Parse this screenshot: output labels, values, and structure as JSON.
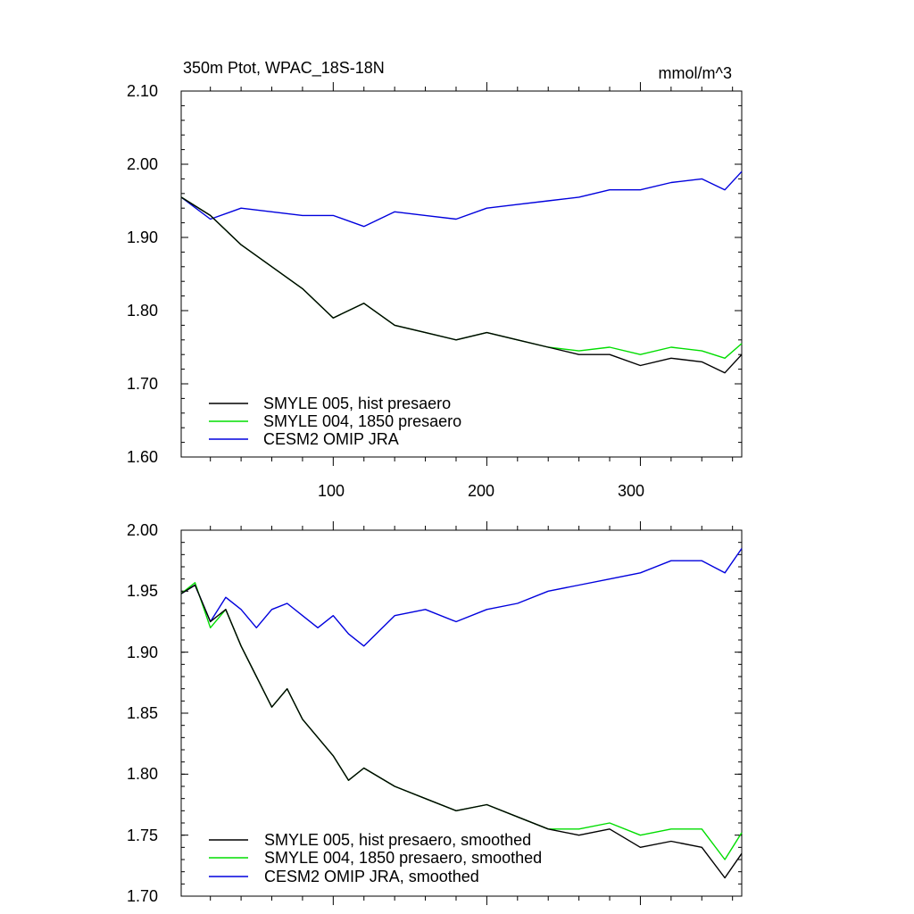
{
  "chart_data": [
    {
      "type": "line",
      "title": "350m Ptot, WPAC_18S-18N",
      "units": "mmol/m^3",
      "xlim": [
        1,
        366
      ],
      "ylim": [
        1.6,
        2.1
      ],
      "x_ticks": [
        100,
        200,
        300
      ],
      "y_ticks": [
        "1.60",
        "1.70",
        "1.80",
        "1.90",
        "2.00",
        "2.10"
      ],
      "legend_position": "bottom-left",
      "series": [
        {
          "name": "SMYLE 005, hist presaero",
          "color": "#000000",
          "x": [
            1,
            20,
            40,
            60,
            80,
            100,
            120,
            140,
            160,
            180,
            200,
            220,
            240,
            260,
            280,
            300,
            320,
            340,
            355,
            366
          ],
          "y": [
            1.955,
            1.93,
            1.89,
            1.86,
            1.83,
            1.79,
            1.81,
            1.78,
            1.77,
            1.76,
            1.77,
            1.76,
            1.75,
            1.74,
            1.74,
            1.725,
            1.735,
            1.73,
            1.715,
            1.74
          ]
        },
        {
          "name": "SMYLE 004, 1850 presaero",
          "color": "#00dd00",
          "x": [
            1,
            20,
            40,
            60,
            80,
            100,
            120,
            140,
            160,
            180,
            200,
            220,
            240,
            260,
            280,
            300,
            320,
            340,
            355,
            366
          ],
          "y": [
            1.955,
            1.93,
            1.89,
            1.86,
            1.83,
            1.79,
            1.81,
            1.78,
            1.77,
            1.76,
            1.77,
            1.76,
            1.75,
            1.745,
            1.75,
            1.74,
            1.75,
            1.745,
            1.735,
            1.755
          ]
        },
        {
          "name": "CESM2 OMIP JRA",
          "color": "#0000dd",
          "x": [
            1,
            20,
            40,
            60,
            80,
            100,
            120,
            140,
            160,
            180,
            200,
            220,
            240,
            260,
            280,
            300,
            320,
            340,
            355,
            366
          ],
          "y": [
            1.955,
            1.925,
            1.94,
            1.935,
            1.93,
            1.93,
            1.915,
            1.935,
            1.93,
            1.925,
            1.94,
            1.945,
            1.95,
            1.955,
            1.965,
            1.965,
            1.975,
            1.98,
            1.965,
            1.99
          ]
        }
      ]
    },
    {
      "type": "line",
      "title": "",
      "xlim": [
        1,
        366
      ],
      "ylim": [
        1.7,
        2.0
      ],
      "x_ticks": [
        100,
        200,
        300
      ],
      "y_ticks": [
        "1.70",
        "1.75",
        "1.80",
        "1.85",
        "1.90",
        "1.95",
        "2.00"
      ],
      "legend_position": "bottom-left",
      "series": [
        {
          "name": "SMYLE 005, hist presaero, smoothed",
          "color": "#000000",
          "x": [
            1,
            10,
            20,
            30,
            40,
            50,
            60,
            70,
            80,
            90,
            100,
            110,
            120,
            140,
            160,
            180,
            200,
            220,
            240,
            260,
            280,
            300,
            320,
            340,
            355,
            366
          ],
          "y": [
            1.948,
            1.955,
            1.925,
            1.935,
            1.905,
            1.88,
            1.855,
            1.87,
            1.845,
            1.83,
            1.815,
            1.795,
            1.805,
            1.79,
            1.78,
            1.77,
            1.775,
            1.765,
            1.755,
            1.75,
            1.755,
            1.74,
            1.745,
            1.74,
            1.715,
            1.735
          ]
        },
        {
          "name": "SMYLE 004, 1850 presaero, smoothed",
          "color": "#00dd00",
          "x": [
            1,
            10,
            20,
            30,
            40,
            50,
            60,
            70,
            80,
            90,
            100,
            110,
            120,
            140,
            160,
            180,
            200,
            220,
            240,
            260,
            280,
            300,
            320,
            340,
            355,
            366
          ],
          "y": [
            1.948,
            1.957,
            1.92,
            1.935,
            1.905,
            1.88,
            1.855,
            1.87,
            1.845,
            1.83,
            1.815,
            1.795,
            1.805,
            1.79,
            1.78,
            1.77,
            1.775,
            1.765,
            1.755,
            1.755,
            1.76,
            1.75,
            1.755,
            1.755,
            1.73,
            1.752
          ]
        },
        {
          "name": "CESM2 OMIP JRA, smoothed",
          "color": "#0000dd",
          "x": [
            1,
            10,
            20,
            30,
            40,
            50,
            60,
            70,
            80,
            90,
            100,
            110,
            120,
            140,
            160,
            180,
            200,
            220,
            240,
            260,
            280,
            300,
            320,
            340,
            355,
            366
          ],
          "y": [
            1.948,
            1.955,
            1.925,
            1.945,
            1.935,
            1.92,
            1.935,
            1.94,
            1.93,
            1.92,
            1.93,
            1.915,
            1.905,
            1.93,
            1.935,
            1.925,
            1.935,
            1.94,
            1.95,
            1.955,
            1.96,
            1.965,
            1.975,
            1.975,
            1.965,
            1.985
          ]
        }
      ]
    }
  ]
}
